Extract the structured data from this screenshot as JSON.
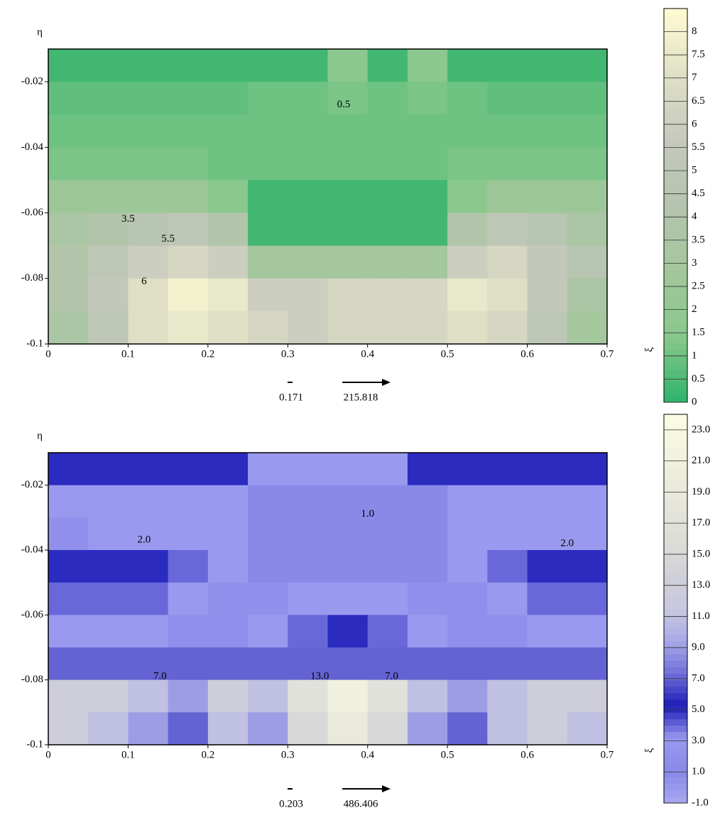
{
  "chart_data": [
    {
      "type": "contour",
      "y_label": "η",
      "colorbar_label": "ξ",
      "xlim": [
        0,
        0.7
      ],
      "ylim": [
        -0.1,
        -0.01
      ],
      "xticks": [
        0,
        0.1,
        0.2,
        0.3,
        0.4,
        0.5,
        0.6,
        0.7
      ],
      "yticks": [
        -0.02,
        -0.04,
        -0.06,
        -0.08,
        -0.1
      ],
      "clim": [
        0,
        8.5
      ],
      "cticks": [
        0,
        0.5,
        1,
        1.5,
        2,
        2.5,
        3,
        3.5,
        4,
        4.5,
        5,
        5.5,
        6,
        6.5,
        7,
        7.5,
        8
      ],
      "colorscale": [
        "#2fb36b",
        "#88c88c",
        "#a3c79c",
        "#b5c4ae",
        "#c6c9bd",
        "#dfe0c6",
        "#fffbd2"
      ],
      "field": {
        "x": [
          0.025,
          0.075,
          0.125,
          0.175,
          0.225,
          0.275,
          0.325,
          0.375,
          0.425,
          0.475,
          0.525,
          0.575,
          0.625,
          0.675
        ],
        "y": [
          -0.015,
          -0.025,
          -0.035,
          -0.045,
          -0.055,
          -0.065,
          -0.075,
          -0.085,
          -0.095
        ],
        "z": [
          [
            0.3,
            0.3,
            0.3,
            0.3,
            0.3,
            0.3,
            0.3,
            1.5,
            0.3,
            1.5,
            0.3,
            0.3,
            0.3,
            0.3
          ],
          [
            0.8,
            0.8,
            0.8,
            0.8,
            0.8,
            1,
            1,
            1.2,
            1,
            1.2,
            1,
            0.8,
            0.8,
            0.8
          ],
          [
            1,
            1,
            1,
            1,
            1,
            1,
            1,
            1,
            1,
            1,
            1,
            1,
            1,
            1
          ],
          [
            1.2,
            1.2,
            1.2,
            1.2,
            1,
            1,
            1,
            1,
            1,
            1,
            1.2,
            1.2,
            1.2,
            1.2
          ],
          [
            2.5,
            2.5,
            2.5,
            2.5,
            1.5,
            0.3,
            0.3,
            0.3,
            0.3,
            0.3,
            1.5,
            2.5,
            2.5,
            2.5
          ],
          [
            3.5,
            4,
            4.5,
            5,
            4,
            0.3,
            0.3,
            0.3,
            0.3,
            0.3,
            4,
            5,
            4.5,
            3.5
          ],
          [
            4,
            5,
            6,
            6.5,
            6,
            3,
            3,
            3,
            3,
            3,
            6,
            6.5,
            5.5,
            4.5
          ],
          [
            4,
            5.5,
            7,
            8,
            7.5,
            6,
            6,
            6.5,
            6.5,
            6.5,
            7.5,
            7,
            5.5,
            3.5
          ],
          [
            3.5,
            5,
            7,
            7.5,
            7,
            6.5,
            6,
            6.5,
            6.5,
            6.5,
            7,
            6.5,
            5,
            3
          ]
        ]
      },
      "annotations": [
        {
          "text": "0.5",
          "x": 0.37,
          "y": -0.027
        },
        {
          "text": "3.5",
          "x": 0.1,
          "y": -0.062
        },
        {
          "text": "5.5",
          "x": 0.15,
          "y": -0.068
        },
        {
          "text": "6",
          "x": 0.12,
          "y": -0.081
        }
      ],
      "vector_key": [
        0.171,
        215.818
      ]
    },
    {
      "type": "contour",
      "y_label": "η",
      "colorbar_label": "ξ",
      "xlim": [
        0,
        0.7
      ],
      "ylim": [
        -0.1,
        -0.01
      ],
      "xticks": [
        0,
        0.1,
        0.2,
        0.3,
        0.4,
        0.5,
        0.6,
        0.7
      ],
      "yticks": [
        -0.02,
        -0.04,
        -0.06,
        -0.08,
        -0.1
      ],
      "clim": [
        -1,
        24
      ],
      "cticks": [
        {
          "value": -1,
          "label": "-1.0"
        },
        {
          "value": 1,
          "label": "1.0"
        },
        {
          "value": 3,
          "label": "3.0"
        },
        {
          "value": 5,
          "label": "5.0"
        },
        {
          "value": 7,
          "label": "7.0"
        },
        {
          "value": 9,
          "label": "9.0"
        },
        {
          "value": 11,
          "label": "11.0"
        },
        {
          "value": 13,
          "label": "13.0"
        },
        {
          "value": 15,
          "label": "15.0"
        },
        {
          "value": 17,
          "label": "17.0"
        },
        {
          "value": 19,
          "label": "19.0"
        },
        {
          "value": 21,
          "label": "21.0"
        },
        {
          "value": 23,
          "label": "23.0"
        }
      ],
      "colorscale": [
        "#a8a8f0",
        "#8888e8",
        "#9a9af0",
        "#1c1cb8",
        "#7070d8",
        "#a8a8e8",
        "#c8c8e0",
        "#d0d0d8",
        "#dcdcd8",
        "#e4e4dc",
        "#ececdc",
        "#f4f4e0",
        "#fcfce4"
      ],
      "field": {
        "x": [
          0.025,
          0.075,
          0.125,
          0.175,
          0.225,
          0.275,
          0.325,
          0.375,
          0.425,
          0.475,
          0.525,
          0.575,
          0.625,
          0.675
        ],
        "y": [
          -0.015,
          -0.025,
          -0.035,
          -0.045,
          -0.055,
          -0.065,
          -0.075,
          -0.085,
          -0.095
        ],
        "z": [
          [
            5,
            5,
            5,
            5,
            5,
            3,
            3,
            3,
            3,
            5,
            5,
            5,
            5,
            5
          ],
          [
            3,
            3,
            3,
            3,
            3,
            1,
            1,
            1,
            1,
            1,
            3,
            3,
            3,
            3
          ],
          [
            2,
            3,
            3,
            3,
            3,
            1,
            1,
            1,
            1,
            1,
            3,
            3,
            3,
            3
          ],
          [
            5,
            5,
            5,
            4,
            3,
            1,
            1,
            1,
            1,
            1,
            3,
            4,
            5,
            5
          ],
          [
            4,
            4,
            4,
            3,
            2,
            2,
            3,
            3,
            3,
            2,
            2,
            3,
            4,
            4
          ],
          [
            3,
            3,
            3,
            2,
            2,
            3,
            4,
            5,
            4,
            3,
            2,
            2,
            3,
            3
          ],
          [
            7,
            7,
            7,
            7,
            7,
            7,
            7,
            7,
            7,
            7,
            7,
            7,
            7,
            7
          ],
          [
            13,
            13,
            11,
            9,
            13,
            11,
            17,
            21,
            17,
            11,
            9,
            11,
            13,
            13
          ],
          [
            13,
            11,
            9,
            7,
            11,
            9,
            15,
            19,
            15,
            9,
            7,
            11,
            13,
            11
          ]
        ]
      },
      "annotations": [
        {
          "text": "1.0",
          "x": 0.4,
          "y": -0.029
        },
        {
          "text": "2.0",
          "x": 0.12,
          "y": -0.037
        },
        {
          "text": "2.0",
          "x": 0.65,
          "y": -0.038
        },
        {
          "text": "7.0",
          "x": 0.14,
          "y": -0.079
        },
        {
          "text": "13.0",
          "x": 0.34,
          "y": -0.079
        },
        {
          "text": "7.0",
          "x": 0.43,
          "y": -0.079
        }
      ],
      "vector_key": [
        0.203,
        486.406
      ]
    }
  ]
}
